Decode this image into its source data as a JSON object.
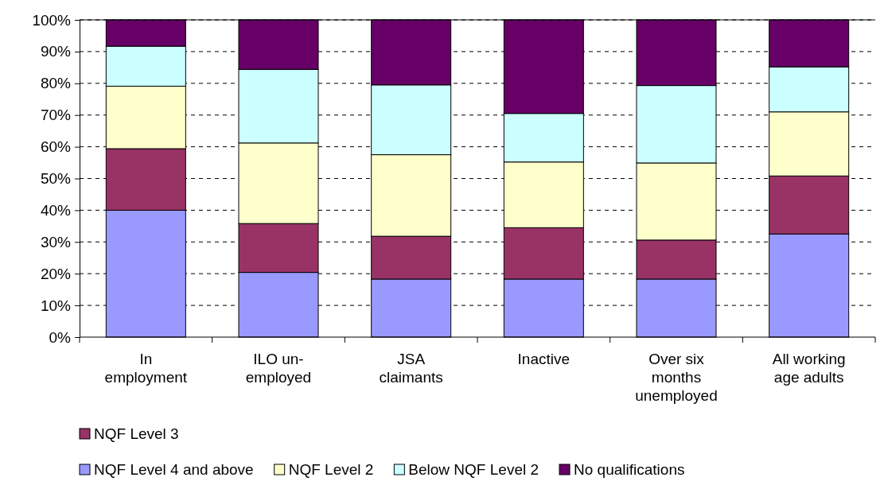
{
  "chart_data": {
    "type": "bar",
    "stacked": true,
    "categories": [
      "In employment",
      "ILO un-employed",
      "JSA claimants",
      "Inactive",
      "Over six months unemployed",
      "All working age adults"
    ],
    "series": [
      {
        "name": "NQF Level 4 and above",
        "color": "#9999ff",
        "values": [
          40.0,
          20.4,
          18.3,
          18.3,
          18.3,
          32.5
        ]
      },
      {
        "name": "NQF Level 3",
        "color": "#993366",
        "values": [
          19.4,
          15.4,
          13.5,
          16.2,
          12.3,
          18.3
        ]
      },
      {
        "name": "NQF Level 2",
        "color": "#ffffcc",
        "values": [
          19.7,
          25.4,
          25.7,
          20.7,
          24.3,
          20.2
        ]
      },
      {
        "name": "Below NQF Level 2",
        "color": "#ccffff",
        "values": [
          12.6,
          23.2,
          22.0,
          15.3,
          24.4,
          14.2
        ]
      },
      {
        "name": "No qualifications",
        "color": "#660066",
        "values": [
          8.3,
          15.6,
          20.5,
          29.5,
          20.7,
          14.8
        ]
      }
    ],
    "ylim": [
      0,
      100
    ],
    "yticks": [
      {
        "value": 0,
        "label": "0%"
      },
      {
        "value": 10,
        "label": "10%"
      },
      {
        "value": 20,
        "label": "20%"
      },
      {
        "value": 30,
        "label": "30%"
      },
      {
        "value": 40,
        "label": "40%"
      },
      {
        "value": 50,
        "label": "50%"
      },
      {
        "value": 60,
        "label": "60%"
      },
      {
        "value": 70,
        "label": "70%"
      },
      {
        "value": 80,
        "label": "80%"
      },
      {
        "value": 90,
        "label": "90%"
      },
      {
        "value": 100,
        "label": "100%"
      }
    ],
    "grid": "y",
    "legend": "bottom"
  }
}
